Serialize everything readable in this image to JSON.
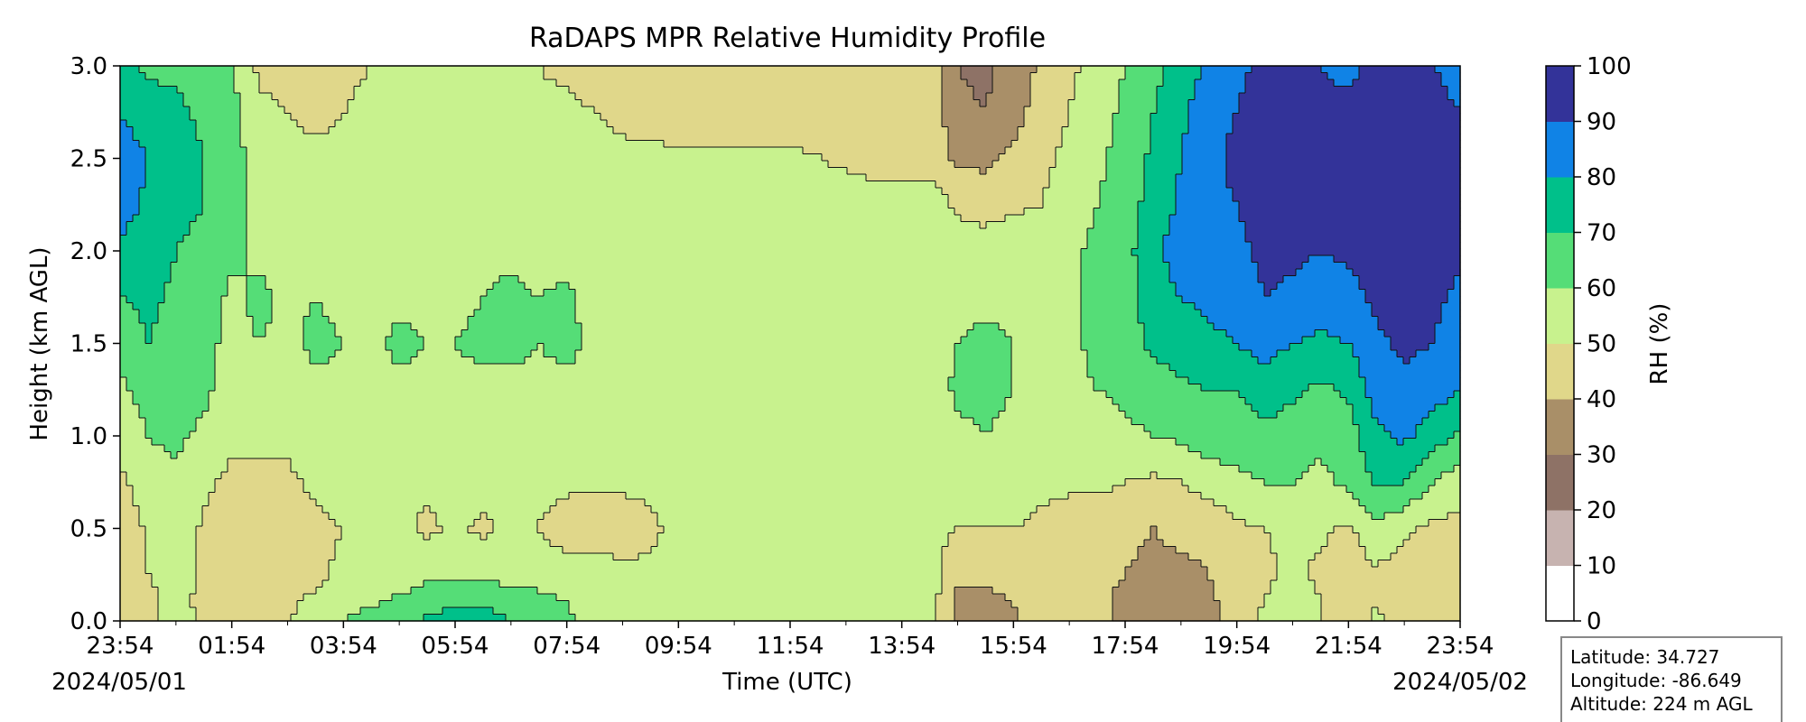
{
  "chart_data": {
    "type": "heatmap",
    "title": "RaDAPS MPR Relative Humidity Profile",
    "xlabel": "Time (UTC)",
    "ylabel": "Height (km AGL)",
    "x_ticks": [
      "23:54",
      "01:54",
      "03:54",
      "05:54",
      "07:54",
      "09:54",
      "11:54",
      "13:54",
      "15:54",
      "17:54",
      "19:54",
      "21:54",
      "23:54"
    ],
    "x_range_hours": [
      0,
      24
    ],
    "date_start": "2024/05/01",
    "date_end": "2024/05/02",
    "y_ticks": [
      "0.0",
      "0.5",
      "1.0",
      "1.5",
      "2.0",
      "2.5",
      "3.0"
    ],
    "ylim": [
      0,
      3
    ],
    "colorbar": {
      "label": "RH (%)",
      "ticks": [
        "0",
        "10",
        "20",
        "30",
        "40",
        "50",
        "60",
        "70",
        "80",
        "90",
        "100"
      ],
      "levels": [
        0,
        10,
        20,
        30,
        40,
        50,
        60,
        70,
        80,
        90,
        100
      ],
      "colors": [
        "#ffffff",
        "#c7b3b0",
        "#8e7266",
        "#a98f68",
        "#e0d78a",
        "#c8f28e",
        "#55dd77",
        "#00c08a",
        "#1083e6",
        "#333399"
      ]
    },
    "columns_hours": [
      0,
      0.5,
      1,
      1.5,
      2,
      2.5,
      3,
      3.5,
      4,
      4.5,
      5,
      5.5,
      6,
      6.5,
      7,
      7.5,
      8,
      8.5,
      9,
      10,
      12,
      14,
      14.6,
      15,
      15.5,
      16,
      16.5,
      17,
      17.5,
      18,
      18.5,
      19,
      19.5,
      20,
      20.5,
      21,
      21.5,
      22,
      22.5,
      23,
      23.5,
      24
    ],
    "rows_km": [
      0,
      0.1,
      0.25,
      0.5,
      0.75,
      1.0,
      1.25,
      1.5,
      1.75,
      2.0,
      2.25,
      2.5,
      2.75,
      3.0
    ],
    "rh_values": [
      [
        45,
        48,
        55,
        48,
        45,
        48,
        50,
        55,
        60,
        65,
        68,
        72,
        75,
        75,
        70,
        68,
        62,
        55,
        52,
        52,
        52,
        52,
        52,
        38,
        38,
        38,
        45,
        45,
        42,
        38,
        35,
        38,
        38,
        45,
        52,
        55,
        50,
        45,
        52,
        45,
        45,
        45
      ],
      [
        45,
        48,
        52,
        48,
        45,
        45,
        48,
        52,
        55,
        58,
        62,
        65,
        68,
        68,
        66,
        64,
        60,
        55,
        52,
        52,
        52,
        52,
        52,
        38,
        38,
        40,
        45,
        45,
        42,
        38,
        36,
        38,
        38,
        45,
        50,
        55,
        50,
        45,
        50,
        45,
        45,
        45
      ],
      [
        45,
        50,
        55,
        48,
        45,
        45,
        45,
        48,
        52,
        55,
        55,
        58,
        58,
        58,
        56,
        55,
        55,
        55,
        52,
        52,
        52,
        52,
        52,
        42,
        42,
        42,
        45,
        45,
        42,
        40,
        38,
        38,
        40,
        45,
        48,
        52,
        48,
        45,
        48,
        45,
        45,
        45
      ],
      [
        42,
        52,
        58,
        48,
        45,
        45,
        45,
        48,
        50,
        55,
        52,
        48,
        52,
        48,
        52,
        50,
        45,
        45,
        45,
        52,
        52,
        52,
        52,
        50,
        50,
        50,
        48,
        45,
        45,
        42,
        40,
        42,
        42,
        48,
        50,
        52,
        52,
        48,
        58,
        52,
        48,
        46
      ],
      [
        48,
        56,
        58,
        52,
        48,
        48,
        48,
        52,
        55,
        55,
        52,
        52,
        52,
        55,
        55,
        52,
        52,
        52,
        52,
        52,
        52,
        52,
        52,
        54,
        55,
        55,
        52,
        52,
        52,
        50,
        48,
        50,
        55,
        58,
        60,
        60,
        58,
        62,
        72,
        70,
        60,
        55
      ],
      [
        52,
        60,
        62,
        58,
        52,
        52,
        52,
        55,
        55,
        55,
        55,
        55,
        55,
        55,
        55,
        55,
        55,
        55,
        52,
        52,
        52,
        52,
        52,
        58,
        60,
        58,
        55,
        55,
        55,
        58,
        60,
        62,
        65,
        65,
        68,
        65,
        62,
        65,
        78,
        82,
        75,
        68
      ],
      [
        58,
        65,
        66,
        62,
        56,
        56,
        55,
        58,
        58,
        58,
        58,
        58,
        58,
        58,
        58,
        58,
        58,
        58,
        56,
        56,
        56,
        56,
        56,
        62,
        62,
        60,
        58,
        58,
        60,
        62,
        65,
        68,
        70,
        70,
        75,
        72,
        68,
        72,
        85,
        88,
        85,
        80
      ],
      [
        64,
        70,
        66,
        62,
        58,
        60,
        58,
        62,
        60,
        58,
        62,
        60,
        60,
        62,
        62,
        60,
        62,
        58,
        56,
        56,
        56,
        56,
        56,
        60,
        62,
        60,
        58,
        58,
        62,
        65,
        72,
        75,
        78,
        80,
        84,
        80,
        78,
        80,
        88,
        92,
        90,
        85
      ],
      [
        70,
        72,
        68,
        65,
        58,
        62,
        58,
        60,
        58,
        56,
        58,
        58,
        58,
        60,
        62,
        60,
        62,
        56,
        54,
        54,
        54,
        54,
        54,
        58,
        58,
        58,
        56,
        58,
        62,
        66,
        76,
        80,
        82,
        84,
        90,
        88,
        84,
        86,
        92,
        95,
        92,
        88
      ],
      [
        78,
        76,
        70,
        68,
        62,
        58,
        56,
        56,
        56,
        55,
        55,
        56,
        56,
        58,
        58,
        56,
        56,
        55,
        54,
        54,
        54,
        54,
        54,
        55,
        56,
        58,
        56,
        58,
        62,
        66,
        78,
        84,
        86,
        88,
        92,
        92,
        90,
        92,
        95,
        96,
        94,
        92
      ],
      [
        84,
        78,
        72,
        70,
        64,
        56,
        54,
        54,
        54,
        54,
        54,
        54,
        55,
        56,
        56,
        55,
        55,
        54,
        54,
        54,
        54,
        54,
        54,
        48,
        45,
        48,
        50,
        55,
        60,
        65,
        74,
        82,
        88,
        90,
        94,
        94,
        92,
        94,
        96,
        96,
        95,
        92
      ],
      [
        86,
        80,
        74,
        70,
        65,
        54,
        52,
        52,
        52,
        52,
        52,
        52,
        54,
        55,
        55,
        54,
        54,
        52,
        52,
        52,
        52,
        45,
        45,
        38,
        38,
        42,
        48,
        52,
        58,
        64,
        72,
        80,
        88,
        92,
        95,
        96,
        94,
        94,
        96,
        96,
        95,
        92
      ],
      [
        80,
        74,
        72,
        68,
        64,
        52,
        50,
        48,
        50,
        52,
        52,
        52,
        54,
        56,
        55,
        52,
        52,
        50,
        48,
        45,
        45,
        45,
        45,
        32,
        30,
        36,
        45,
        50,
        56,
        62,
        70,
        78,
        86,
        90,
        94,
        96,
        92,
        92,
        95,
        94,
        92,
        90
      ],
      [
        72,
        68,
        68,
        65,
        60,
        48,
        48,
        45,
        48,
        50,
        50,
        50,
        52,
        55,
        52,
        50,
        48,
        45,
        45,
        45,
        45,
        45,
        45,
        30,
        28,
        34,
        42,
        48,
        54,
        60,
        66,
        74,
        82,
        88,
        92,
        94,
        90,
        88,
        92,
        92,
        90,
        88
      ]
    ]
  },
  "info_box": {
    "latitude": "Latitude: 34.727",
    "longitude": "Longitude: -86.649",
    "altitude": "Altitude: 224 m AGL"
  }
}
